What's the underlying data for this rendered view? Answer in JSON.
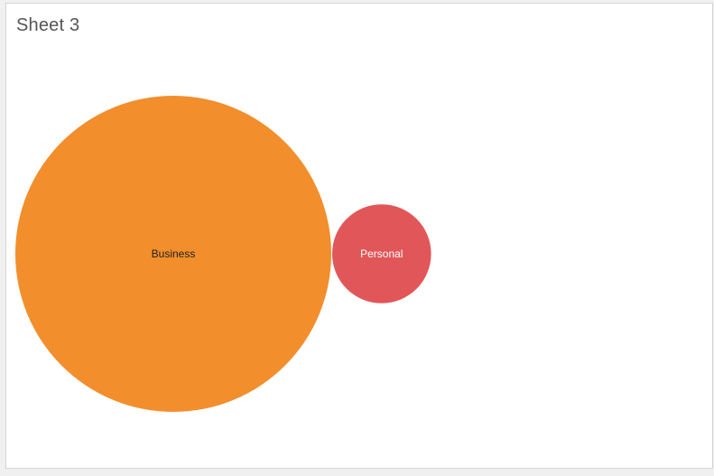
{
  "sheet": {
    "title": "Sheet 3"
  },
  "chart_data": {
    "type": "bubble",
    "categories": [
      "Business",
      "Personal"
    ],
    "values": [
      10.2,
      1
    ],
    "colors": [
      "#f28e2c",
      "#e15759"
    ],
    "label_colors": [
      "#222222",
      "#ffffff"
    ]
  }
}
